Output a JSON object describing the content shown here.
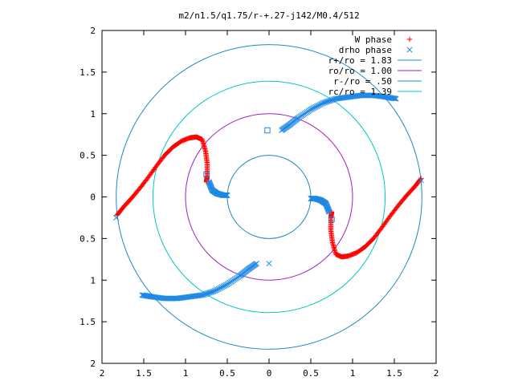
{
  "chart_data": {
    "type": "scatter",
    "title": "m2/n1.5/q1.75/r-+.27-j142/M0.4/512",
    "xlabel": "",
    "ylabel": "",
    "xlim": [
      -2,
      2
    ],
    "ylim": [
      -2,
      2
    ],
    "x_ticks": [
      {
        "value": -2,
        "label": "2"
      },
      {
        "value": -1.5,
        "label": "1.5"
      },
      {
        "value": -1,
        "label": "1"
      },
      {
        "value": -0.5,
        "label": "0.5"
      },
      {
        "value": 0,
        "label": "0"
      },
      {
        "value": 0.5,
        "label": "0.5"
      },
      {
        "value": 1,
        "label": "1"
      },
      {
        "value": 1.5,
        "label": "1.5"
      },
      {
        "value": 2,
        "label": "2"
      }
    ],
    "y_ticks": [
      {
        "value": 2,
        "label": "2"
      },
      {
        "value": 1.5,
        "label": "1.5"
      },
      {
        "value": 1,
        "label": "1"
      },
      {
        "value": 0.5,
        "label": "0.5"
      },
      {
        "value": 0,
        "label": "0"
      },
      {
        "value": -0.5,
        "label": "0.5"
      },
      {
        "value": -1,
        "label": "1"
      },
      {
        "value": -1.5,
        "label": "1.5"
      },
      {
        "value": -2,
        "label": "2"
      }
    ],
    "grid": false,
    "legend_position": "top-right",
    "circles": [
      {
        "label": "r+/ro = 1.83",
        "radius": 1.83,
        "color": "#1e88c8"
      },
      {
        "label": "ro/ro = 1.00",
        "radius": 1.0,
        "color": "#a020c0"
      },
      {
        "label": "r-/ro = .50",
        "radius": 0.5,
        "color": "#1e88c8"
      },
      {
        "label": "rc/ro = 1.39",
        "radius": 1.39,
        "color": "#00c8c8"
      }
    ],
    "series": [
      {
        "name": "W phase",
        "marker": "+",
        "color": "#ff0000",
        "arms": [
          {
            "x": [
              -1.82,
              -1.75,
              -1.65,
              -1.55,
              -1.45,
              -1.35,
              -1.25,
              -1.15,
              -1.05,
              -0.95,
              -0.87,
              -0.8,
              -0.76,
              -0.74,
              -0.74,
              -0.75
            ],
            "y": [
              -0.22,
              -0.13,
              -0.02,
              0.1,
              0.23,
              0.37,
              0.5,
              0.6,
              0.67,
              0.71,
              0.72,
              0.69,
              0.55,
              0.4,
              0.25,
              0.18
            ]
          },
          {
            "x": [
              1.82,
              1.75,
              1.65,
              1.55,
              1.45,
              1.35,
              1.25,
              1.15,
              1.05,
              0.95,
              0.87,
              0.8,
              0.76,
              0.74,
              0.74,
              0.75
            ],
            "y": [
              0.22,
              0.13,
              0.02,
              -0.1,
              -0.23,
              -0.37,
              -0.5,
              -0.6,
              -0.67,
              -0.71,
              -0.72,
              -0.69,
              -0.55,
              -0.4,
              -0.25,
              -0.18
            ]
          }
        ]
      },
      {
        "name": "drho phase",
        "marker": "x",
        "color": "#1e88e5",
        "arms": [
          {
            "x": [
              -0.72,
              -0.68,
              -0.62,
              -0.55,
              -0.5
            ],
            "y": [
              0.18,
              0.08,
              0.04,
              0.02,
              0.02
            ]
          },
          {
            "x": [
              0.15,
              0.25,
              0.35,
              0.5,
              0.65,
              0.8,
              0.95,
              1.1,
              1.25,
              1.4,
              1.52
            ],
            "y": [
              0.8,
              0.87,
              0.95,
              1.05,
              1.13,
              1.18,
              1.2,
              1.22,
              1.22,
              1.2,
              1.18
            ]
          },
          {
            "x": [
              0.5,
              0.55,
              0.62,
              0.68,
              0.72
            ],
            "y": [
              -0.02,
              -0.02,
              -0.04,
              -0.08,
              -0.18
            ]
          },
          {
            "x": [
              -0.15,
              -0.25,
              -0.35,
              -0.5,
              -0.65,
              -0.8,
              -0.95,
              -1.1,
              -1.25,
              -1.4,
              -1.52
            ],
            "y": [
              -0.8,
              -0.87,
              -0.95,
              -1.05,
              -1.13,
              -1.18,
              -1.2,
              -1.22,
              -1.22,
              -1.2,
              -1.18
            ]
          }
        ],
        "extra_points": [
          {
            "x": -0.75,
            "y": 0.27,
            "marker": "square"
          },
          {
            "x": 0.75,
            "y": -0.27,
            "marker": "square"
          },
          {
            "x": -0.02,
            "y": 0.8,
            "marker": "square"
          },
          {
            "x": 0.0,
            "y": -0.8,
            "marker": "x"
          },
          {
            "x": -1.83,
            "y": -0.25,
            "marker": "x"
          },
          {
            "x": 1.82,
            "y": 0.2,
            "marker": "x"
          }
        ]
      }
    ]
  }
}
